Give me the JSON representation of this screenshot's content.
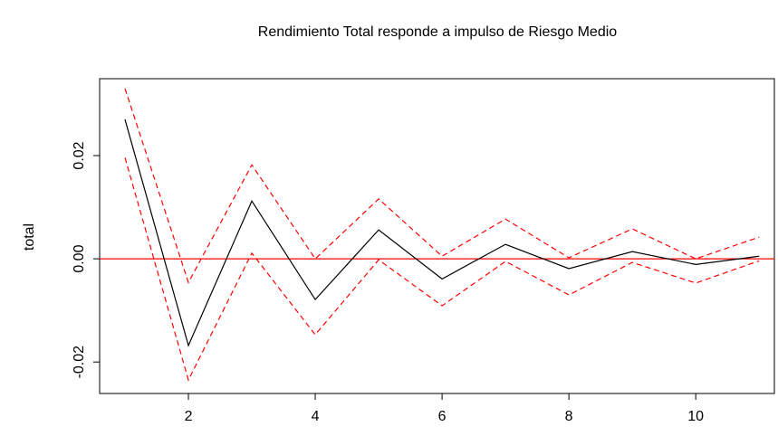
{
  "chart_data": {
    "type": "line",
    "title": "Rendimiento Total responde a impulso de Riesgo Medio",
    "y_label": "total",
    "x": [
      1,
      2,
      3,
      4,
      5,
      6,
      7,
      8,
      9,
      10,
      11
    ],
    "series": [
      {
        "color": "#000000",
        "linestyle": "solid",
        "values": [
          0.027,
          -0.0168,
          0.0112,
          -0.0079,
          0.0056,
          -0.0039,
          0.0028,
          -0.0019,
          0.0014,
          -0.0011,
          0.0005
        ]
      },
      {
        "color": "#ff0000",
        "linestyle": "dashed",
        "values": [
          0.033,
          -0.0046,
          0.0182,
          0.0,
          0.0116,
          0.0005,
          0.0077,
          0.0002,
          0.0058,
          0.0,
          0.0042
        ]
      },
      {
        "color": "#ff0000",
        "linestyle": "dashed",
        "values": [
          0.0196,
          -0.0235,
          0.0011,
          -0.0147,
          -0.0002,
          -0.0091,
          -0.0005,
          -0.007,
          -0.0007,
          -0.0047,
          -0.0004
        ]
      }
    ],
    "hline": {
      "value": 0,
      "color": "#ff0000"
    },
    "xlim": [
      0.6,
      11.24
    ],
    "xticks": [
      2,
      4,
      6,
      8,
      10
    ],
    "ylim": [
      -0.0261,
      0.0349
    ],
    "yticks": [
      -0.02,
      {
        "value": 0,
        "label": "0.00"
      },
      0.02
    ]
  }
}
